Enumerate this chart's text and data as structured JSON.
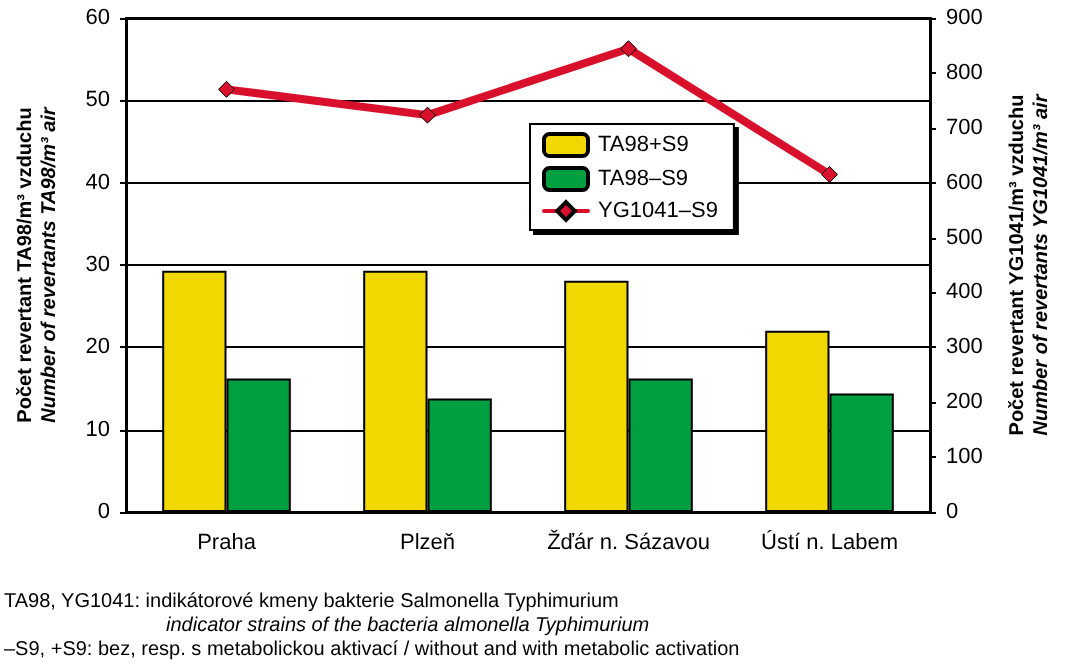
{
  "chart_data": {
    "type": "bar",
    "categories": [
      "Praha",
      "Plzeň",
      "Žďár n. Sázavou",
      "Ústí n. Labem"
    ],
    "series": [
      {
        "name": "TA98+S9",
        "color": "#f0d800",
        "values": [
          29.3,
          29.3,
          28.1,
          22.0
        ]
      },
      {
        "name": "TA98–S9",
        "color": "#00a040",
        "values": [
          16.2,
          13.8,
          16.2,
          14.4
        ]
      },
      {
        "name": "YG1041–S9",
        "type": "line",
        "axis": "y2",
        "color": "#d8102c",
        "marker": "diamond",
        "line_style": "solid",
        "values": [
          770,
          723,
          844,
          615
        ]
      }
    ],
    "ylabel": "Počet revertant TA98/m³ vzduchu\nNumber of revertants TA98/m³ air",
    "y2label": "Počet revertant YG1041/m³ vzduchu\nNumber of revertants YG1041/m³ air",
    "ylim": [
      0,
      60
    ],
    "yticks": [
      0,
      10,
      20,
      30,
      40,
      50,
      60
    ],
    "y2lim": [
      0,
      900
    ],
    "y2ticks": [
      0,
      100,
      200,
      300,
      400,
      500,
      600,
      700,
      800,
      900
    ],
    "grid": "y",
    "legend": "top right",
    "annotations": [
      "TA98, YG1041: indikátorové kmeny bakterie Salmonella Typhimurium",
      "indicator strains of the bacteria almonella Typhimurium",
      "–S9, +S9: bez, resp. s metabolickou aktivací / without and with metabolic activation"
    ]
  }
}
